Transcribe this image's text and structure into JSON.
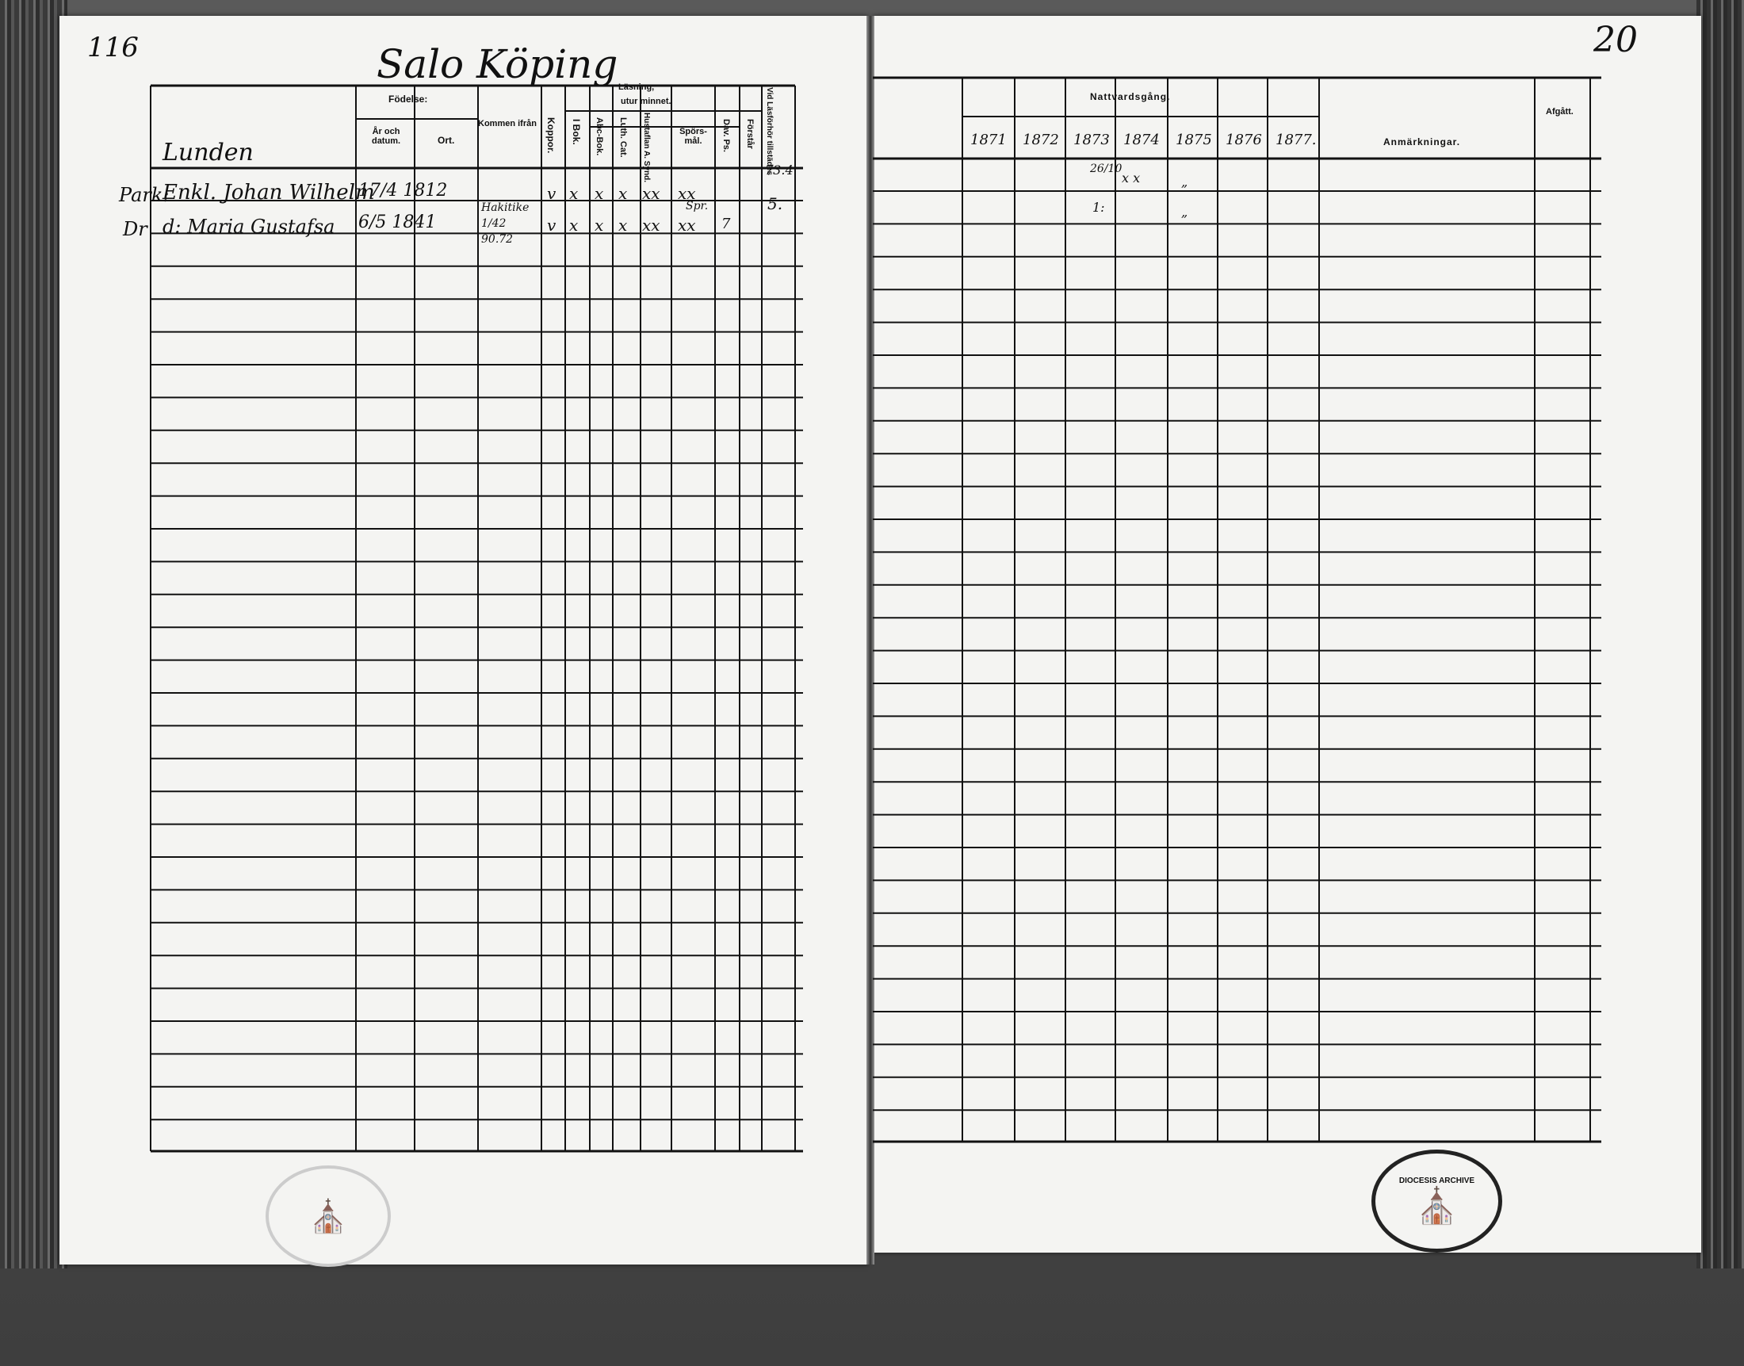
{
  "document": {
    "type": "Swedish parish register (husförhörslängd) spread",
    "left_page": {
      "page_number": "116",
      "heading": "Salo Köping",
      "household_label": "Lunden",
      "headers": {
        "fodelse": "Födelse:",
        "ar_och_datum": "År och datum.",
        "ort": "Ort.",
        "kommen_ifran": "Kommen ifrån",
        "koppor": "Koppor.",
        "lasning": "Läsning,",
        "utur_minnet": "utur minnet.",
        "i_bok": "I Bok.",
        "abc_bok": "Abc-Bok.",
        "luth_cat": "Luth. Cat.",
        "hustaflan": "Hustaflan A. Synd.",
        "sporsmal": "Spörs-mål.",
        "dav_ps": "Dav. Ps.",
        "forstar": "Förstår",
        "vid_lasforhor": "Vid Läsförhör tillstädes"
      },
      "entries": [
        {
          "margin": "Park:",
          "name": "Enkl. Johan Wilhelm",
          "birth": "17/4 1812",
          "birthplace": "",
          "came_from": "",
          "koppor": "v",
          "i_bok": "x",
          "abc_bok": "x",
          "luth_cat": "x",
          "hustaflan": "xx",
          "sporsmal": "xx",
          "dav_ps": "",
          "forstar": "",
          "lasforhor_top": "73.4",
          "lasforhor": "5."
        },
        {
          "margin": "Dr",
          "name": "d: Maria Gustafsa",
          "birth": "6/5 1841",
          "birthplace": "",
          "came_from": "Hakitike 1/42 90.72",
          "koppor": "v",
          "i_bok": "x",
          "abc_bok": "x",
          "luth_cat": "x",
          "hustaflan": "xx",
          "sporsmal_note": "Spr.",
          "sporsmal": "xx",
          "dav_ps": "7",
          "forstar": "",
          "lasforhor": ""
        }
      ]
    },
    "right_page": {
      "page_number": "20",
      "headers": {
        "nattvardsgang": "Nattvardsgång.",
        "years": [
          "1871",
          "1872",
          "1873",
          "1874",
          "1875",
          "1876",
          "1877."
        ],
        "anmarkningar": "Anmärkningar.",
        "afgatt": "Afgått."
      },
      "entries": [
        {
          "y1873": "26/10",
          "y1874": "x x",
          "y1875": "„"
        },
        {
          "y1873": "1:",
          "y1875": "„"
        }
      ]
    },
    "stamps": {
      "left": "",
      "right": "DIOCESIS ARCHIVE"
    }
  }
}
